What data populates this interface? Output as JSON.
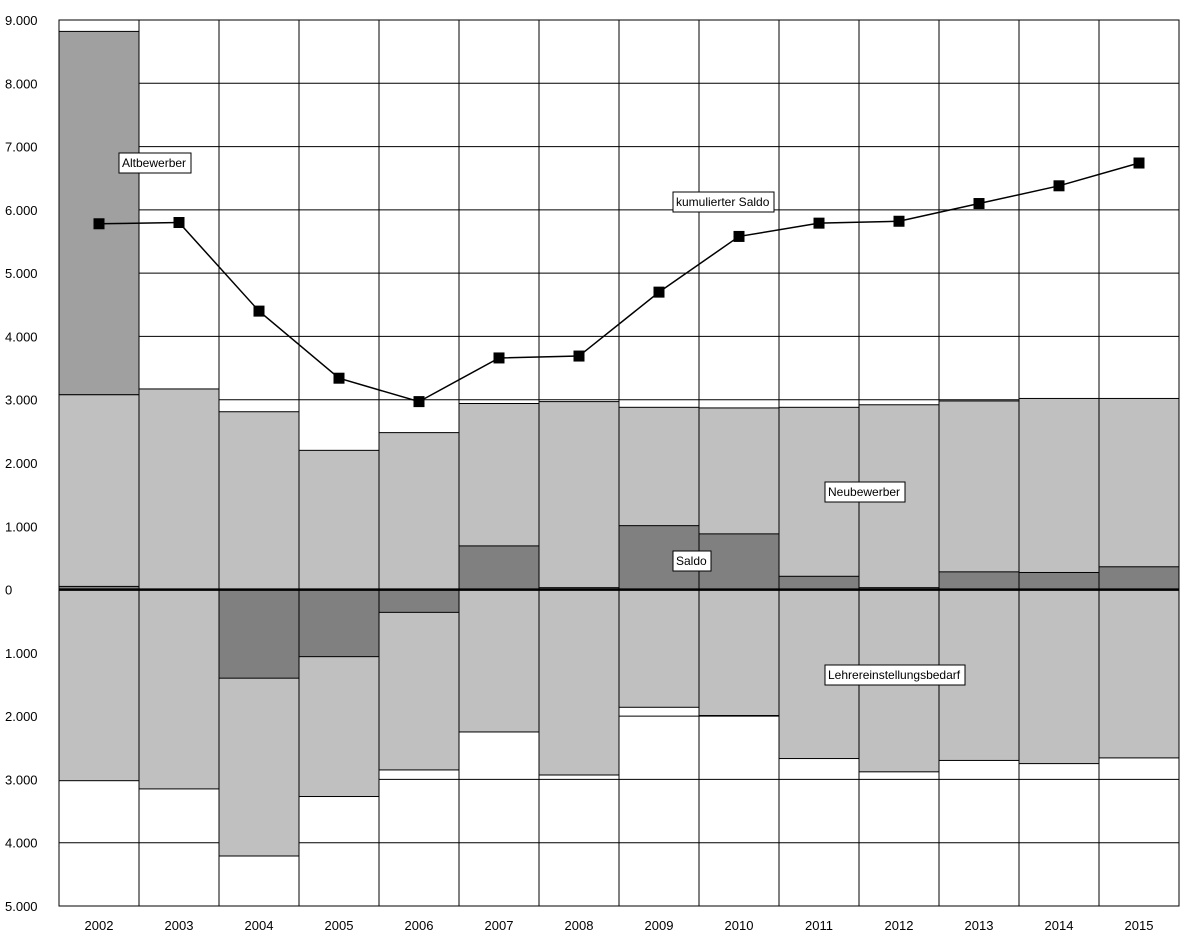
{
  "colors": {
    "altbewerber": "#a0a0a0",
    "neubewerber": "#c0c0c0",
    "saldo": "#808080",
    "lehrereinstellungsbedarf": "#c0c0c0",
    "line": "#000000",
    "grid": "#000000",
    "background": "#ffffff"
  },
  "chart_data": {
    "type": "bar",
    "title": "",
    "xlabel": "",
    "ylabel": "",
    "ylim": [
      -5000,
      9000
    ],
    "y_ticks": [
      9000,
      8000,
      7000,
      6000,
      5000,
      4000,
      3000,
      2000,
      1000,
      0,
      -1000,
      -2000,
      -3000,
      -4000,
      -5000
    ],
    "y_tick_labels": [
      "9.000",
      "8.000",
      "7.000",
      "6.000",
      "5.000",
      "4.000",
      "3.000",
      "2.000",
      "1.000",
      "0",
      "1.000",
      "2.000",
      "3.000",
      "4.000",
      "5.000"
    ],
    "grid": true,
    "categories": [
      "2002",
      "2003",
      "2004",
      "2005",
      "2006",
      "2007",
      "2008",
      "2009",
      "2010",
      "2011",
      "2012",
      "2013",
      "2014",
      "2015"
    ],
    "series": [
      {
        "name": "Neubewerber",
        "values": [
          3080,
          3170,
          2810,
          2200,
          2480,
          2940,
          2970,
          2880,
          2870,
          2880,
          2920,
          2980,
          3020,
          3020
        ]
      },
      {
        "name": "Altbewerber",
        "values": [
          5740,
          0,
          0,
          0,
          0,
          0,
          0,
          0,
          0,
          0,
          0,
          0,
          0,
          0
        ]
      },
      {
        "name": "Lehrereinstellungsbedarf",
        "values": [
          -3020,
          -3150,
          -4210,
          -3270,
          -2850,
          -2250,
          -2930,
          -1860,
          -1990,
          -2670,
          -2880,
          -2700,
          -2750,
          -2660
        ]
      },
      {
        "name": "Saldo",
        "values": [
          50,
          0,
          -1400,
          -1060,
          -360,
          690,
          30,
          1010,
          880,
          210,
          30,
          280,
          270,
          360
        ]
      },
      {
        "name": "kumulierter Saldo",
        "values": [
          5780,
          5800,
          4400,
          3340,
          2970,
          3660,
          3690,
          4700,
          5580,
          5790,
          5820,
          6100,
          6380,
          6740
        ]
      }
    ],
    "annotations": [
      {
        "text": "Altbewerber",
        "series": "Altbewerber"
      },
      {
        "text": "kumulierter Saldo",
        "series": "kumulierter Saldo"
      },
      {
        "text": "Neubewerber",
        "series": "Neubewerber"
      },
      {
        "text": "Saldo",
        "series": "Saldo"
      },
      {
        "text": "Lehrereinstellungsbedarf",
        "series": "Lehrereinstellungsbedarf"
      }
    ]
  }
}
